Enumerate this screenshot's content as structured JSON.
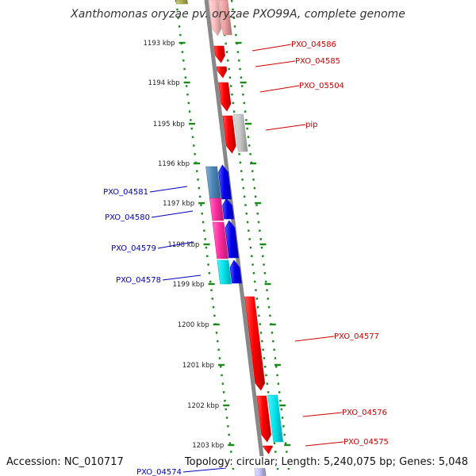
{
  "title": "Xanthomonas oryzae pv. oryzae PXO99A, complete genome",
  "footer": {
    "accession": "Accession: NC_010717",
    "topology": "Topology: circular; Length: 5,240,075 bp; Genes: 5,048"
  },
  "colors": {
    "background": "#ffffff",
    "backbone": "#888888",
    "tick_ring": "#1a8a1a",
    "forward_gene": "#ff0000",
    "reverse_gene": "#0000ee",
    "forward_label": "#cc0000",
    "reverse_label": "#0000bb",
    "paralog_gray": "#c8c8c8",
    "paralog_cyan": "#00e5ee",
    "paralog_pink": "#ff2aa0",
    "paralog_steel": "#4a86b8"
  },
  "scale_ticks": [
    "1193 kbp",
    "1194 kbp",
    "1195 kbp",
    "1196 kbp",
    "1197 kbp",
    "1198 kbp",
    "1199 kbp",
    "1200 kbp",
    "1201 kbp",
    "1202 kbp",
    "1203 kbp"
  ],
  "forward_genes": [
    "PXO_04586",
    "PXO_04585",
    "PXO_05504",
    "pip",
    "PXO_04577",
    "PXO_04576",
    "PXO_04575"
  ],
  "reverse_genes": [
    "PXO_04581",
    "PXO_04580",
    "PXO_04579",
    "PXO_04578",
    "PXO_04574"
  ]
}
